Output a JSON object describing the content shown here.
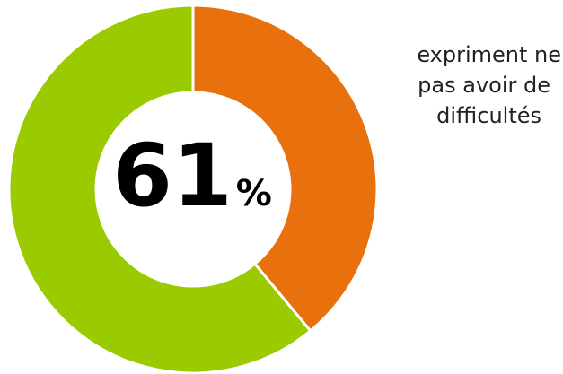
{
  "chart_data": {
    "type": "pie",
    "donut": true,
    "slices": [
      {
        "label": "expriment ne pas avoir de difficultés",
        "value": 61,
        "color": "#9ACA00"
      },
      {
        "label": "",
        "value": 39,
        "color": "#E8700D"
      }
    ],
    "center_value": "61",
    "center_unit": "%",
    "annotation_lines": [
      "expriment ne",
      "pas avoir de",
      "difficultés"
    ],
    "legend": "none"
  }
}
